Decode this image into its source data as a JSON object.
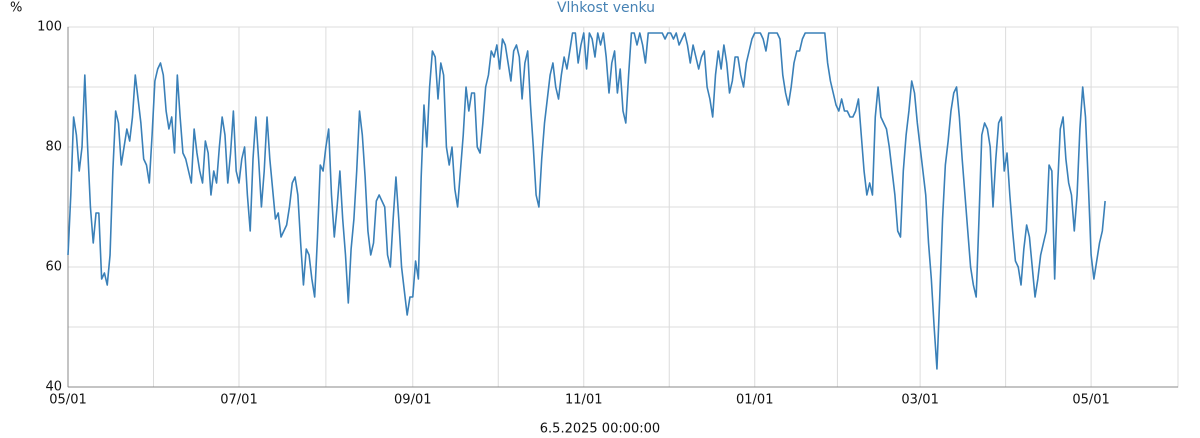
{
  "chart_data": {
    "type": "line",
    "title": "Vlhkost venku",
    "ylabel": "%",
    "xlabel": "6.5.2025 00:00:00",
    "ylim": [
      40,
      100
    ],
    "yticks": [
      40,
      60,
      80,
      100
    ],
    "grid": true,
    "categories": [
      "05/01",
      null,
      null,
      null,
      null,
      null,
      null,
      null,
      null,
      null,
      null,
      null,
      null,
      null,
      null,
      null,
      null,
      null,
      null,
      null,
      null,
      null,
      null,
      null,
      null,
      null,
      null,
      null,
      null,
      null,
      null,
      null,
      null,
      null,
      null,
      null,
      null,
      null,
      null,
      null,
      null,
      null,
      null,
      null,
      null,
      null,
      null,
      null,
      null,
      null,
      null,
      null,
      null,
      null,
      null,
      null,
      null,
      null,
      null,
      null,
      null,
      "07/01",
      null,
      null,
      null,
      null,
      null,
      null,
      null,
      null,
      null,
      null,
      null,
      null,
      null,
      null,
      null,
      null,
      null,
      null,
      null,
      null,
      null,
      null,
      null,
      null,
      null,
      null,
      null,
      null,
      null,
      null,
      null,
      null,
      null,
      null,
      null,
      null,
      null,
      null,
      null,
      null,
      null,
      null,
      null,
      null,
      null,
      null,
      null,
      null,
      null,
      null,
      null,
      null,
      null,
      null,
      null,
      null,
      null,
      null,
      null,
      null,
      null,
      "09/01",
      null,
      null,
      null,
      null,
      null,
      null,
      null,
      null,
      null,
      null,
      null,
      null,
      null,
      null,
      null,
      null,
      null,
      null,
      null,
      null,
      null,
      null,
      null,
      null,
      null,
      null,
      null,
      null,
      null,
      null,
      null,
      null,
      null,
      null,
      null,
      null,
      null,
      null,
      null,
      null,
      null,
      null,
      null,
      null,
      null,
      null,
      null,
      null,
      null,
      null,
      null,
      null,
      null,
      null,
      null,
      null,
      null,
      null,
      null,
      null,
      "11/01",
      null,
      null,
      null,
      null,
      null,
      null,
      null,
      null,
      null,
      null,
      null,
      null,
      null,
      null,
      null,
      null,
      null,
      null,
      null,
      null,
      null,
      null,
      null,
      null,
      null,
      null,
      null,
      null,
      null,
      null,
      null,
      null,
      null,
      null,
      null,
      null,
      null,
      null,
      null,
      null,
      null,
      null,
      null,
      null,
      null,
      null,
      null,
      null,
      null,
      null,
      null,
      null,
      null,
      null,
      null,
      null,
      null,
      null,
      null,
      null,
      "01/01",
      null,
      null,
      null,
      null,
      null,
      null,
      null,
      null,
      null,
      null,
      null,
      null,
      null,
      null,
      null,
      null,
      null,
      null,
      null,
      null,
      null,
      null,
      null,
      null,
      null,
      null,
      null,
      null,
      null,
      null,
      null,
      null,
      null,
      null,
      null,
      null,
      null,
      null,
      null,
      null,
      null,
      null,
      null,
      null,
      null,
      null,
      null,
      null,
      null,
      null,
      null,
      null,
      null,
      null,
      null,
      null,
      null,
      null,
      "03/01",
      null,
      null,
      null,
      null,
      null,
      null,
      null,
      null,
      null,
      null,
      null,
      null,
      null,
      null,
      null,
      null,
      null,
      null,
      null,
      null,
      null,
      null,
      null,
      null,
      null,
      null,
      null,
      null,
      null,
      null,
      null,
      null,
      null,
      null,
      null,
      null,
      null,
      null,
      null,
      null,
      null,
      null,
      null,
      null,
      null,
      null,
      null,
      null,
      null,
      null,
      null,
      null,
      null,
      null,
      null,
      null,
      null,
      null,
      null,
      null,
      "05/01",
      null,
      null,
      null,
      null,
      null,
      null,
      null,
      null,
      null,
      null,
      null,
      null,
      null,
      null,
      null,
      null,
      null,
      null,
      null,
      null,
      null,
      null,
      null,
      null,
      null,
      null,
      null,
      null,
      null,
      null,
      null
    ],
    "series": [
      {
        "color": "#3a80b8",
        "values": [
          62,
          72,
          85,
          82,
          76,
          80,
          92,
          80,
          70,
          64,
          69,
          69,
          58,
          59,
          57,
          62,
          76,
          86,
          84,
          77,
          80,
          83,
          81,
          85,
          92,
          88,
          84,
          78,
          77,
          74,
          82,
          91,
          93,
          94,
          92,
          86,
          83,
          85,
          79,
          92,
          85,
          79,
          78,
          76,
          74,
          83,
          79,
          76,
          74,
          81,
          79,
          72,
          76,
          74,
          80,
          85,
          82,
          74,
          79,
          86,
          76,
          74,
          78,
          80,
          72,
          66,
          78,
          85,
          78,
          70,
          76,
          85,
          78,
          73,
          68,
          69,
          65,
          66,
          67,
          70,
          74,
          75,
          72,
          64,
          57,
          63,
          62,
          58,
          55,
          65,
          77,
          76,
          80,
          83,
          72,
          65,
          70,
          76,
          68,
          62,
          54,
          63,
          68,
          76,
          86,
          82,
          75,
          66,
          62,
          64,
          71,
          72,
          71,
          70,
          62,
          60,
          68,
          75,
          68,
          60,
          56,
          52,
          55,
          55,
          61,
          58,
          75,
          87,
          80,
          90,
          96,
          95,
          88,
          94,
          92,
          80,
          77,
          80,
          73,
          70,
          76,
          82,
          90,
          86,
          89,
          89,
          80,
          79,
          84,
          90,
          92,
          96,
          95,
          97,
          93,
          98,
          97,
          94,
          91,
          96,
          97,
          95,
          88,
          94,
          96,
          87,
          80,
          72,
          70,
          78,
          84,
          88,
          92,
          94,
          90,
          88,
          92,
          95,
          93,
          96,
          99,
          99,
          94,
          97,
          99,
          93,
          99,
          98,
          95,
          99,
          97,
          99,
          95,
          89,
          94,
          96,
          89,
          93,
          86,
          84,
          92,
          99,
          99,
          97,
          99,
          97,
          94,
          99,
          99,
          99,
          99,
          99,
          99,
          98,
          99,
          99,
          98,
          99,
          97,
          98,
          99,
          97,
          94,
          97,
          95,
          93,
          95,
          96,
          90,
          88,
          85,
          92,
          96,
          93,
          97,
          94,
          89,
          91,
          95,
          95,
          92,
          90,
          94,
          96,
          98,
          99,
          99,
          99,
          98,
          96,
          99,
          99,
          99,
          99,
          98,
          92,
          89,
          87,
          90,
          94,
          96,
          96,
          98,
          99,
          99,
          99,
          99,
          99,
          99,
          99,
          99,
          94,
          91,
          89,
          87,
          86,
          88,
          86,
          86,
          85,
          85,
          86,
          88,
          82,
          76,
          72,
          74,
          72,
          85,
          90,
          85,
          84,
          83,
          80,
          76,
          72,
          66,
          65,
          76,
          82,
          86,
          91,
          89,
          84,
          80,
          76,
          72,
          64,
          58,
          50,
          43,
          55,
          68,
          77,
          81,
          86,
          89,
          90,
          85,
          78,
          72,
          66,
          60,
          57,
          55,
          68,
          82,
          84,
          83,
          80,
          70,
          78,
          84,
          85,
          76,
          79,
          72,
          66,
          61,
          60,
          57,
          63,
          67,
          65,
          60,
          55,
          58,
          62,
          64,
          66,
          77,
          76,
          58,
          73,
          83,
          85,
          78,
          74,
          72,
          66,
          72,
          83,
          90,
          85,
          74,
          62,
          58,
          61,
          64,
          66,
          71,
          null,
          null,
          null,
          null,
          null,
          null,
          null,
          null,
          null,
          null,
          null,
          null,
          null,
          null,
          null,
          null,
          null,
          null,
          null,
          null,
          null,
          null,
          null,
          null,
          null,
          null
        ]
      }
    ]
  }
}
